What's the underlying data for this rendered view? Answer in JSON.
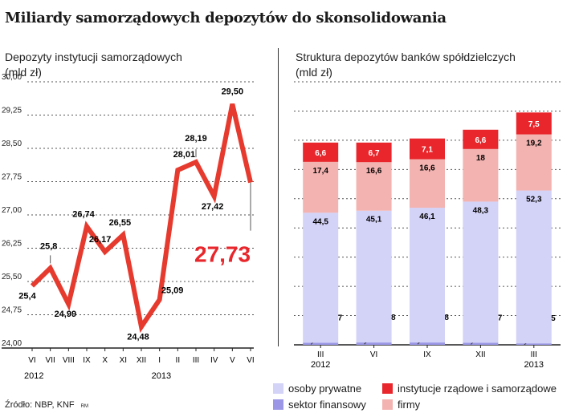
{
  "title": "Miliardy samorządowych depozytów do skonsolidowania",
  "source": "Źródło: NBP, KNF",
  "author": "RM",
  "chart_data": [
    {
      "type": "line",
      "title": "Depozyty instytucji samorządowych (mld zł)",
      "title_line1": "Depozyty instytucji samorządowych",
      "title_line2": "(mld zł)",
      "x": [
        "VI",
        "VII",
        "VIII",
        "IX",
        "X",
        "XI",
        "XII",
        "I",
        "II",
        "III",
        "IV",
        "V",
        "VI"
      ],
      "year_labels": [
        {
          "text": "2012",
          "index": 0
        },
        {
          "text": "2013",
          "index": 7
        }
      ],
      "values": [
        25.4,
        25.8,
        24.99,
        26.74,
        26.17,
        26.55,
        24.48,
        25.09,
        28.01,
        28.19,
        27.42,
        29.5,
        27.73
      ],
      "value_labels": [
        "25,4",
        "25,8",
        "24,99",
        "26,74",
        "26,17",
        "26,55",
        "24,48",
        "25,09",
        "28,01",
        "28,19",
        "27,42",
        "29,50",
        "27,73"
      ],
      "ylim": [
        24.0,
        30.0
      ],
      "yticks": [
        24.0,
        24.75,
        25.5,
        26.25,
        27.0,
        27.75,
        28.5,
        29.25,
        30.0
      ],
      "ytick_labels": [
        "24,00",
        "24,75",
        "25,50",
        "26,25",
        "27,00",
        "27,75",
        "28,50",
        "29,25",
        "30,00"
      ],
      "grid": true,
      "line_color": "#e63a2e",
      "highlight_value": "27,73"
    },
    {
      "type": "bar",
      "stacked": true,
      "title": "Struktura depozytów banków spółdzielczych (mld zł)",
      "title_line1": "Struktura depozytów banków spółdzielczych",
      "title_line2": "(mld zł)",
      "categories": [
        "III",
        "VI",
        "IX",
        "XII",
        "III"
      ],
      "year_labels": [
        {
          "text": "2012",
          "index": 0
        },
        {
          "text": "2013",
          "index": 4
        }
      ],
      "series": [
        {
          "name": "sektor finansowy",
          "color": "#9b97e6",
          "values": [
            0.7,
            0.8,
            0.8,
            0.7,
            0.5
          ],
          "labels": [
            "0,7",
            "0,8",
            "0,8",
            "0,7",
            "0,5"
          ]
        },
        {
          "name": "osoby prywatne",
          "color": "#d3d2f7",
          "values": [
            44.5,
            45.1,
            46.1,
            48.3,
            52.3
          ],
          "labels": [
            "44,5",
            "45,1",
            "46,1",
            "48,3",
            "52,3"
          ]
        },
        {
          "name": "firmy",
          "color": "#f3b3b1",
          "values": [
            17.4,
            16.6,
            16.6,
            18.0,
            19.2
          ],
          "labels": [
            "17,4",
            "16,6",
            "16,6",
            "18",
            "19,2"
          ]
        },
        {
          "name": "instytucje rządowe i samorządowe",
          "color": "#e8262b",
          "values": [
            6.6,
            6.7,
            7.1,
            6.6,
            7.5
          ],
          "labels": [
            "6,6",
            "6,7",
            "7,1",
            "6,6",
            "7,5"
          ]
        }
      ],
      "ylim": [
        0,
        90
      ],
      "grid": true
    }
  ],
  "legend": [
    {
      "label": "osoby prywatne",
      "color": "#d3d2f7"
    },
    {
      "label": "instytucje rządowe i samorządowe",
      "color": "#e8262b"
    },
    {
      "label": "sektor finansowy",
      "color": "#9b97e6"
    },
    {
      "label": "firmy",
      "color": "#f3b3b1"
    }
  ]
}
